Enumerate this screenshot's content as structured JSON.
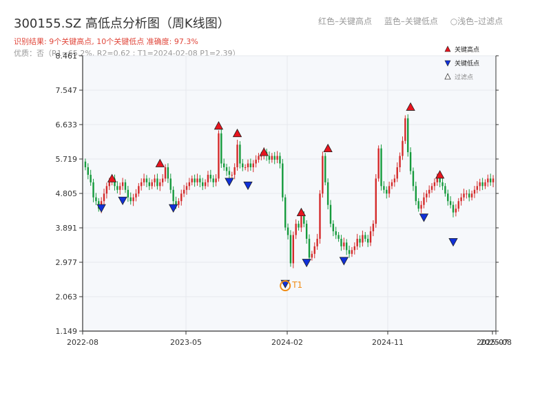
{
  "header": {
    "title": "300155.SZ 高低点分析图（周K线图）",
    "result_text": "识别结果: 9个关键高点, 10个关键低点   准确度: 97.3%",
    "quality_text": "优质：否（R1=65.2%, R2=0.62 ; T1=2024-02-08 P1=2.39）",
    "legend_high_text": "红色–关键高点",
    "legend_low_text": "蓝色–关键低点",
    "legend_filtered_text": "○浅色–过滤点"
  },
  "colors": {
    "up": "#d42a2a",
    "down": "#159a3c",
    "high_marker": "#e8141e",
    "low_marker": "#1030d8",
    "t1_marker": "#f08c14",
    "grid": "#e6e8ee",
    "plot_bg": "#f6f8fb",
    "axis": "#333333"
  },
  "chart_data": {
    "type": "candlestick",
    "x_tick_labels": [
      "2022-08",
      "2023-05",
      "2024-02",
      "2024-11",
      "2025-07",
      "2025-08"
    ],
    "y_tick_labels": [
      "1.149",
      "2.063",
      "2.977",
      "3.891",
      "4.805",
      "5.719",
      "6.633",
      "7.547",
      "8.461"
    ],
    "ylim": [
      1.149,
      8.461
    ],
    "grid": true,
    "legend": {
      "position": "top-right",
      "items": [
        {
          "label": "关键高点",
          "symbol": "high"
        },
        {
          "label": "关键低点",
          "symbol": "low"
        },
        {
          "label": "过滤点",
          "symbol": "filtered"
        }
      ]
    },
    "annotation": {
      "label": "T1",
      "date": "2024-02-08",
      "price": 2.39
    },
    "key_highs": [
      5.2,
      5.6,
      6.6,
      6.4,
      5.9,
      4.3,
      6.0,
      7.1,
      5.3
    ],
    "key_lows": [
      4.4,
      4.6,
      4.4,
      5.1,
      5.0,
      2.39,
      2.95,
      3.0,
      4.15,
      3.5
    ],
    "closes": [
      5.5,
      5.3,
      5.1,
      4.7,
      4.6,
      4.4,
      4.6,
      4.8,
      5.0,
      5.1,
      5.2,
      5.0,
      4.9,
      5.0,
      5.1,
      4.9,
      4.7,
      4.6,
      4.7,
      4.8,
      5.0,
      5.1,
      5.2,
      5.1,
      5.0,
      5.1,
      5.2,
      5.0,
      5.1,
      5.2,
      5.5,
      5.2,
      4.9,
      4.6,
      4.5,
      4.6,
      4.8,
      4.9,
      5.0,
      5.1,
      5.2,
      5.1,
      5.2,
      5.1,
      5.0,
      5.1,
      5.3,
      5.2,
      5.1,
      5.2,
      6.4,
      5.6,
      5.5,
      5.4,
      5.3,
      5.3,
      5.5,
      6.1,
      5.6,
      5.5,
      5.5,
      5.6,
      5.5,
      5.6,
      5.7,
      5.8,
      5.8,
      5.9,
      5.8,
      5.7,
      5.8,
      5.7,
      5.8,
      5.6,
      4.7,
      3.9,
      3.7,
      2.95,
      3.7,
      4.0,
      3.9,
      4.2,
      4.0,
      3.6,
      3.1,
      3.2,
      3.4,
      3.6,
      4.8,
      5.8,
      5.1,
      4.5,
      4.0,
      3.8,
      3.7,
      3.6,
      3.4,
      3.5,
      3.3,
      3.2,
      3.3,
      3.4,
      3.6,
      3.5,
      3.7,
      3.6,
      3.5,
      3.8,
      4.0,
      5.2,
      6.0,
      5.0,
      4.9,
      4.8,
      5.0,
      5.1,
      5.2,
      5.5,
      5.8,
      6.2,
      6.8,
      5.9,
      5.4,
      5.0,
      4.6,
      4.4,
      4.5,
      4.7,
      4.8,
      4.9,
      5.0,
      5.1,
      5.2,
      5.1,
      5.0,
      4.8,
      4.6,
      4.5,
      4.3,
      4.4,
      4.6,
      4.7,
      4.8,
      4.8,
      4.7,
      4.8,
      4.9,
      5.0,
      5.1,
      5.0,
      5.1,
      5.2,
      5.1,
      5.2
    ]
  }
}
